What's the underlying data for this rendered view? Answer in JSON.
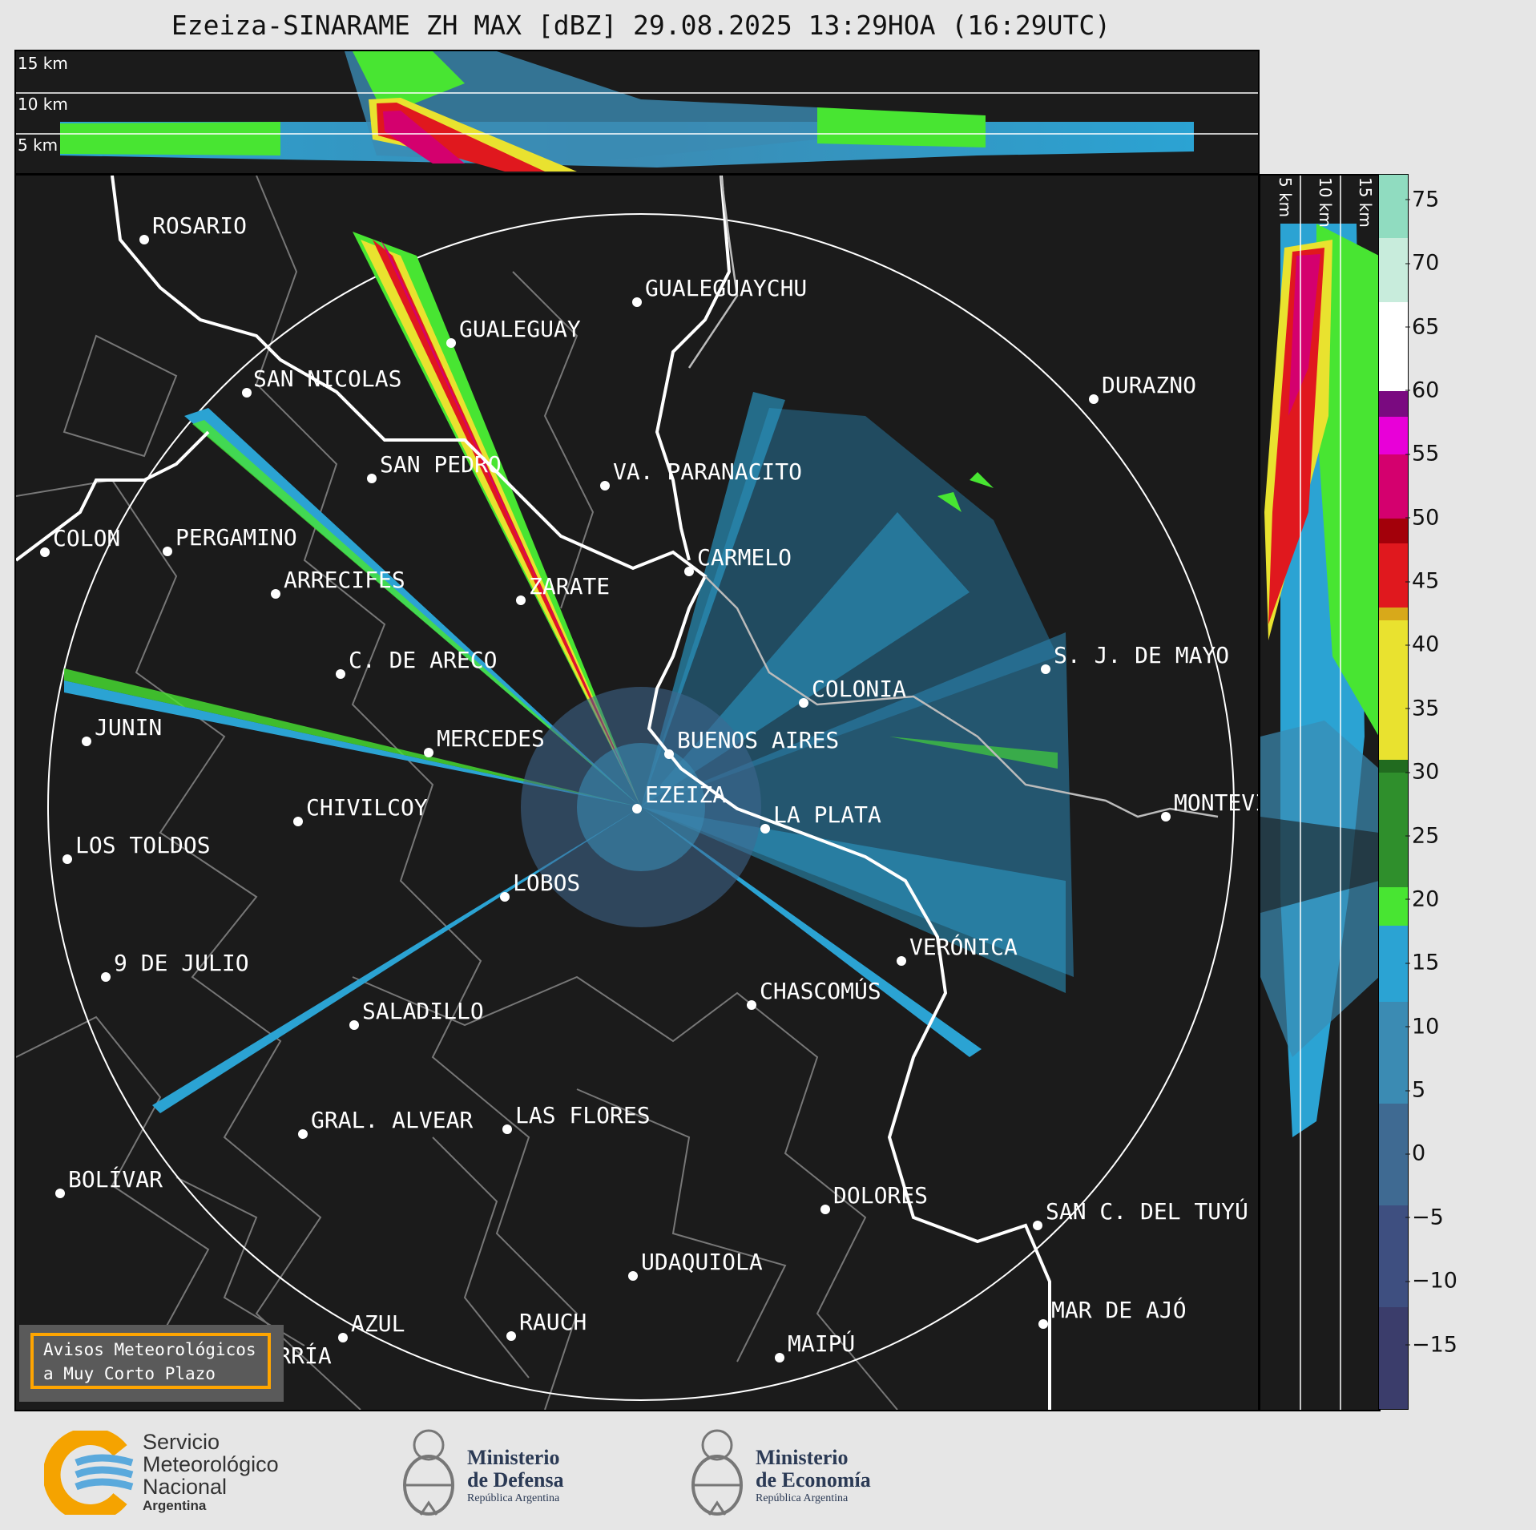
{
  "title": "Ezeiza-SINARAME ZH MAX [dBZ] 29.08.2025 13:29HOA (16:29UTC)",
  "top_panel": {
    "height_labels": [
      "15 km",
      "10 km",
      "5 km"
    ]
  },
  "side_panel": {
    "height_labels": [
      "5 km",
      "10 km",
      "15 km"
    ]
  },
  "radar_site": "EZEIZA",
  "cities": [
    {
      "name": "ROSARIO"
    },
    {
      "name": "GUALEGUAYCHU"
    },
    {
      "name": "GUALEGUAY"
    },
    {
      "name": "SAN NICOLAS"
    },
    {
      "name": "DURAZNO"
    },
    {
      "name": "SAN PEDRO"
    },
    {
      "name": "VA. PARANACITO"
    },
    {
      "name": "COLON"
    },
    {
      "name": "PERGAMINO"
    },
    {
      "name": "CARMELO"
    },
    {
      "name": "ARRECIFES"
    },
    {
      "name": "ZARATE"
    },
    {
      "name": "S. J. DE MAYO"
    },
    {
      "name": "C. DE ARECO"
    },
    {
      "name": "COLONIA"
    },
    {
      "name": "JUNIN"
    },
    {
      "name": "BUENOS AIRES"
    },
    {
      "name": "MERCEDES"
    },
    {
      "name": "MONTEVIDEO"
    },
    {
      "name": "EZEIZA"
    },
    {
      "name": "CHIVILCOY"
    },
    {
      "name": "LA PLATA"
    },
    {
      "name": "LOS TOLDOS"
    },
    {
      "name": "LOBOS"
    },
    {
      "name": "VERÓNICA"
    },
    {
      "name": "9 DE JULIO"
    },
    {
      "name": "CHASCOMÚS"
    },
    {
      "name": "SALADILLO"
    },
    {
      "name": "GRAL. ALVEAR"
    },
    {
      "name": "LAS FLORES"
    },
    {
      "name": "BOLÍVAR"
    },
    {
      "name": "DOLORES"
    },
    {
      "name": "SAN C. DEL TUYÚ"
    },
    {
      "name": "UDAQUIOLA"
    },
    {
      "name": "MAR DE AJÓ"
    },
    {
      "name": "AZUL"
    },
    {
      "name": "RAUCH"
    },
    {
      "name": "MAIPÚ"
    },
    {
      "name": "OLAVARRÍA"
    }
  ],
  "colorbar": {
    "unit": "dBZ",
    "min": -20,
    "max": 77,
    "ticks": [
      "75",
      "70",
      "65",
      "60",
      "55",
      "50",
      "45",
      "40",
      "35",
      "30",
      "25",
      "20",
      "15",
      "10",
      "5",
      "0",
      "−5",
      "−10",
      "−15"
    ],
    "tick_values": [
      75,
      70,
      65,
      60,
      55,
      50,
      45,
      40,
      35,
      30,
      25,
      20,
      15,
      10,
      5,
      0,
      -5,
      -10,
      -15
    ],
    "colors": [
      "#3b3d6b",
      "#3e4f80",
      "#3f6a92",
      "#3b8bb3",
      "#2ba3d3",
      "#48e532",
      "#2f8f2c",
      "#216b1f",
      "#e9e22f",
      "#d8a91a",
      "#e0181e",
      "#a3000a",
      "#d4006e",
      "#e800d8",
      "#7a0a80",
      "#ffffff",
      "#c8ecdc",
      "#90dcc0"
    ]
  },
  "avisos": {
    "line1": "Avisos Meteorológicos",
    "line2": "a Muy Corto Plazo"
  },
  "logos": {
    "smn": {
      "line1": "Servicio",
      "line2": "Meteorológico",
      "line3": "Nacional",
      "line4": "Argentina"
    },
    "defensa": {
      "line1": "Ministerio",
      "line2": "de Defensa",
      "line3": "República Argentina"
    },
    "economia": {
      "line1": "Ministerio",
      "line2": "de Economía",
      "line3": "República Argentina"
    }
  }
}
